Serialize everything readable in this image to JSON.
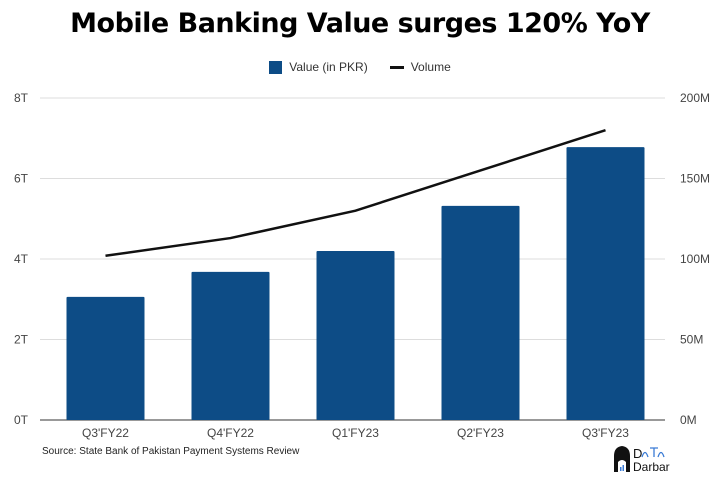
{
  "chart_data": {
    "type": "bar",
    "title": "Mobile Banking Value surges 120% YoY",
    "categories": [
      "Q3'FY22",
      "Q4'FY22",
      "Q1'FY23",
      "Q2'FY23",
      "Q3'FY23"
    ],
    "series": [
      {
        "name": "Value (in PKR)",
        "type": "bar",
        "axis": "left",
        "unit": "T",
        "values": [
          3.06,
          3.68,
          4.2,
          5.32,
          6.78
        ],
        "color": "#0d4c86"
      },
      {
        "name": "Volume",
        "type": "line",
        "axis": "right",
        "unit": "M",
        "values": [
          102,
          113,
          130,
          155,
          180
        ],
        "color": "#111111"
      }
    ],
    "y_left": {
      "range": [
        0,
        8
      ],
      "ticks": [
        "0T",
        "2T",
        "4T",
        "6T",
        "8T"
      ]
    },
    "y_right": {
      "range": [
        0,
        200
      ],
      "ticks": [
        "0M",
        "50M",
        "100M",
        "150M",
        "200M"
      ]
    },
    "grid": true,
    "legend": "top"
  },
  "source": "Source: State Bank of Pakistan Payment Systems Review",
  "logo": {
    "text_top": "DaTa",
    "text_bottom": "Darbar"
  }
}
